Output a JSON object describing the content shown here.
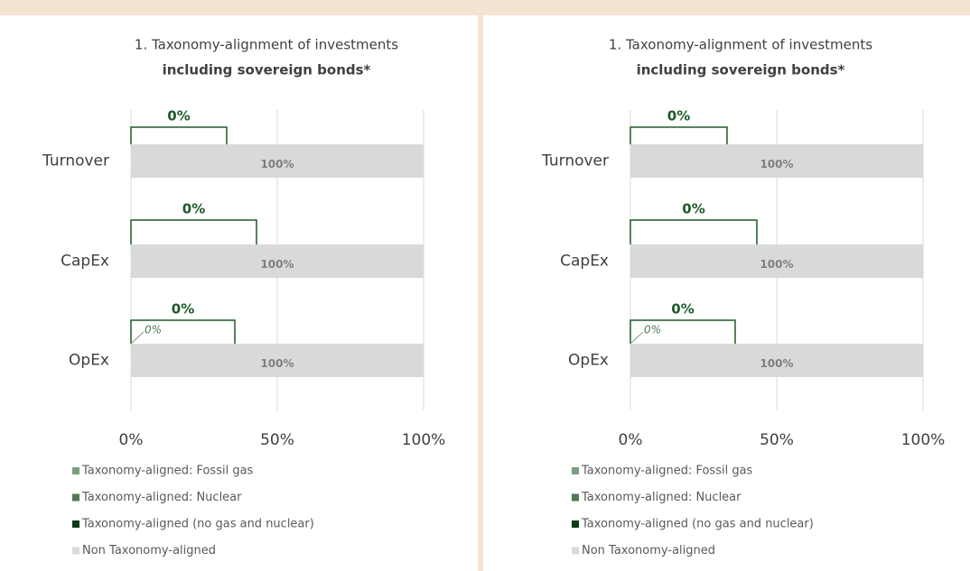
{
  "chart_data": [
    {
      "type": "bar",
      "orientation": "horizontal",
      "stacked": true,
      "title": "1. Taxonomy-alignment of investments",
      "subtitle": "including sovereign bonds*",
      "categories": [
        "Turnover",
        "CapEx",
        "OpEx"
      ],
      "series": [
        {
          "name": "Taxonomy-aligned: Fossil gas",
          "color": "#7a9e7e",
          "values": [
            0,
            0,
            0
          ],
          "value_labels": [
            "0%",
            "0%",
            "0%"
          ]
        },
        {
          "name": "Taxonomy-aligned: Nuclear",
          "color": "#4f7a55",
          "values": [
            0,
            0,
            0
          ]
        },
        {
          "name": "Taxonomy-aligned (no gas and nuclear)",
          "color": "#0b3d12",
          "values": [
            0,
            0,
            0
          ]
        },
        {
          "name": "Non Taxonomy-aligned",
          "color": "#d9d9d9",
          "values": [
            100,
            100,
            100
          ],
          "value_labels": [
            "100%",
            "100%",
            "100%"
          ]
        }
      ],
      "bracket_labels": [
        "0%",
        "0%",
        "0%"
      ],
      "callout_label": "0%",
      "xlim": [
        0,
        100
      ],
      "xticks": [
        {
          "value": 0,
          "label": "0%"
        },
        {
          "value": 50,
          "label": "50%"
        },
        {
          "value": 100,
          "label": "100%"
        }
      ],
      "grid": true
    },
    {
      "type": "bar",
      "orientation": "horizontal",
      "stacked": true,
      "title": "1. Taxonomy-alignment of investments",
      "subtitle": "including sovereign bonds*",
      "categories": [
        "Turnover",
        "CapEx",
        "OpEx"
      ],
      "series": [
        {
          "name": "Taxonomy-aligned: Fossil gas",
          "color": "#7a9e7e",
          "values": [
            0,
            0,
            0
          ],
          "value_labels": [
            "0%",
            "0%",
            "0%"
          ]
        },
        {
          "name": "Taxonomy-aligned: Nuclear",
          "color": "#4f7a55",
          "values": [
            0,
            0,
            0
          ]
        },
        {
          "name": "Taxonomy-aligned (no gas and nuclear)",
          "color": "#0b3d12",
          "values": [
            0,
            0,
            0
          ]
        },
        {
          "name": "Non Taxonomy-aligned",
          "color": "#d9d9d9",
          "values": [
            100,
            100,
            100
          ],
          "value_labels": [
            "100%",
            "100%",
            "100%"
          ]
        }
      ],
      "bracket_labels": [
        "0%",
        "0%",
        "0%"
      ],
      "callout_label": "0%",
      "xlim": [
        0,
        100
      ],
      "xticks": [
        {
          "value": 0,
          "label": "0%"
        },
        {
          "value": 50,
          "label": "50%"
        },
        {
          "value": 100,
          "label": "100%"
        }
      ],
      "grid": true
    }
  ]
}
